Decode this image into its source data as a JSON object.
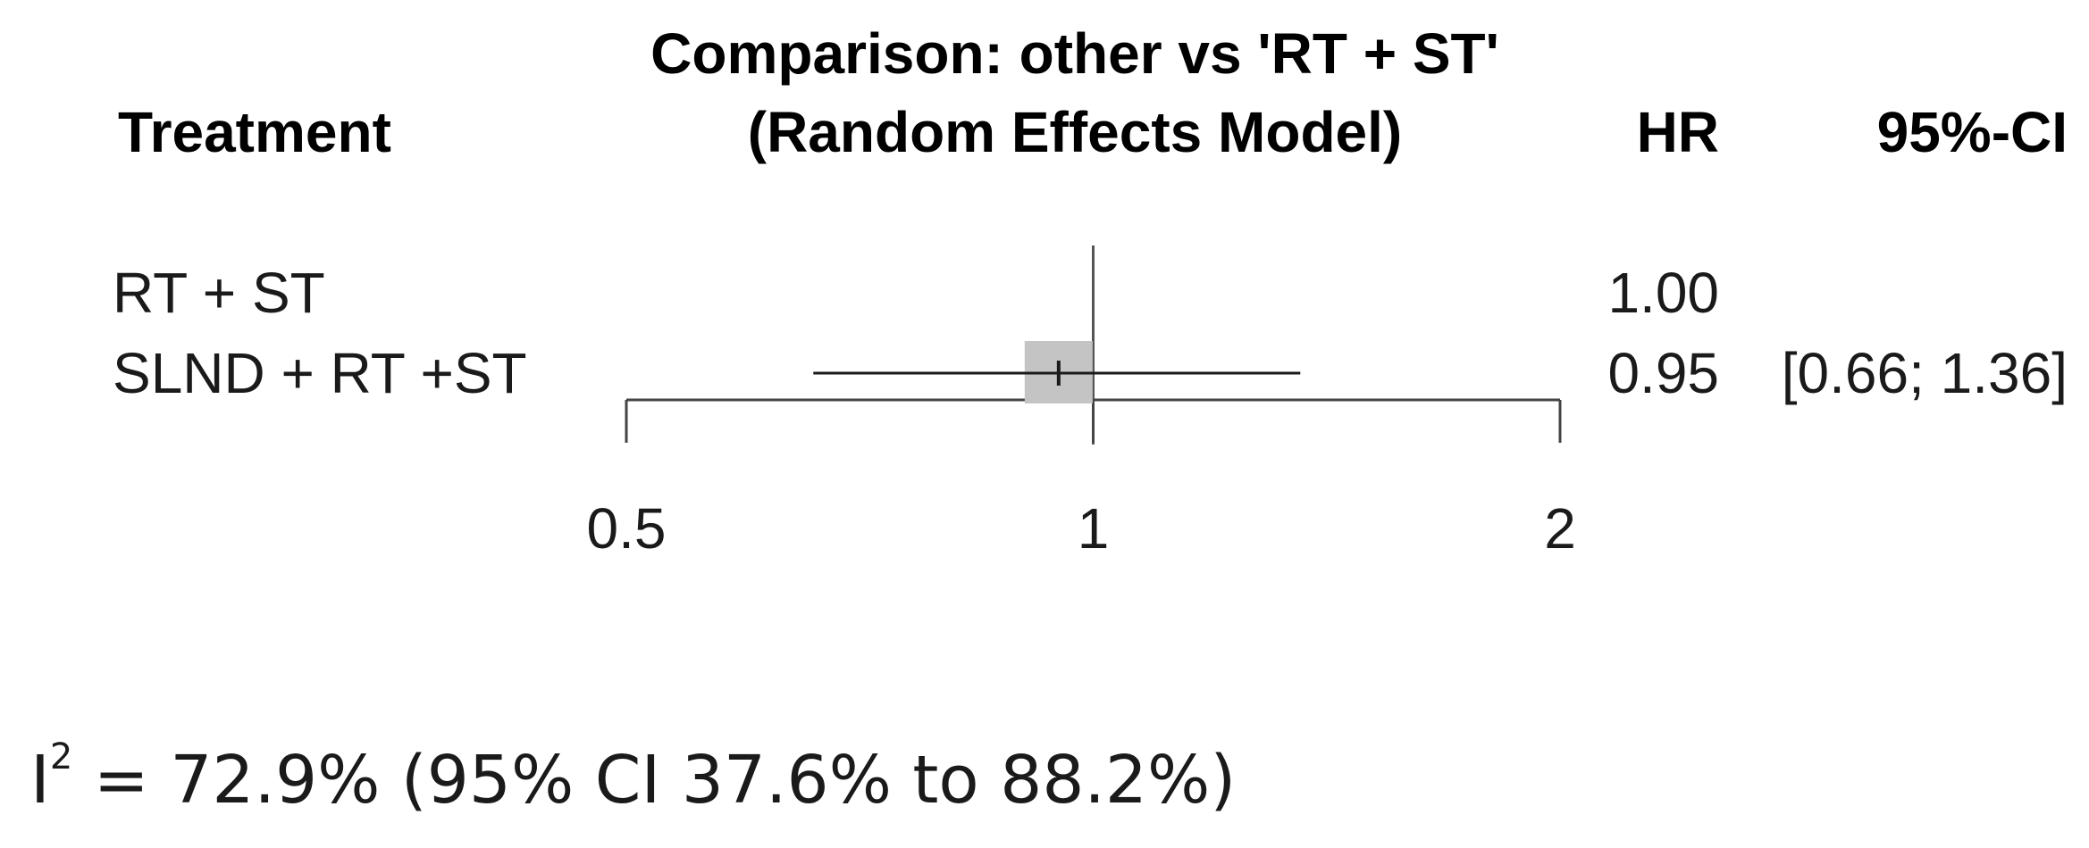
{
  "chart_data": {
    "type": "forest",
    "title_line1": "Comparison: other vs 'RT + ST'",
    "title_line2": "(Random Effects Model)",
    "column_headers": {
      "treatment": "Treatment",
      "hr": "HR",
      "ci": "95%-CI"
    },
    "rows": [
      {
        "treatment": "RT + ST",
        "hr": 1.0,
        "hr_text": "1.00",
        "lower": null,
        "upper": null,
        "ci_text": "",
        "reference": true
      },
      {
        "treatment": "SLND + RT +ST",
        "hr": 0.95,
        "hr_text": "0.95",
        "lower": 0.66,
        "upper": 1.36,
        "ci_text": "[0.66; 1.36]",
        "reference": false
      }
    ],
    "x_axis": {
      "scale": "log",
      "range": [
        0.5,
        2
      ],
      "ticks": [
        0.5,
        1,
        2
      ],
      "tick_labels": [
        "0.5",
        "1",
        "2"
      ],
      "reference_line": 1
    },
    "colors": {
      "box": "#c4c4c4",
      "line": "#1a1a1a"
    }
  },
  "footer": {
    "i2_prefix": "I",
    "i2_sup": "2",
    "i2_text": " = 72.9% (95% CI 37.6% to 88.2%)"
  }
}
